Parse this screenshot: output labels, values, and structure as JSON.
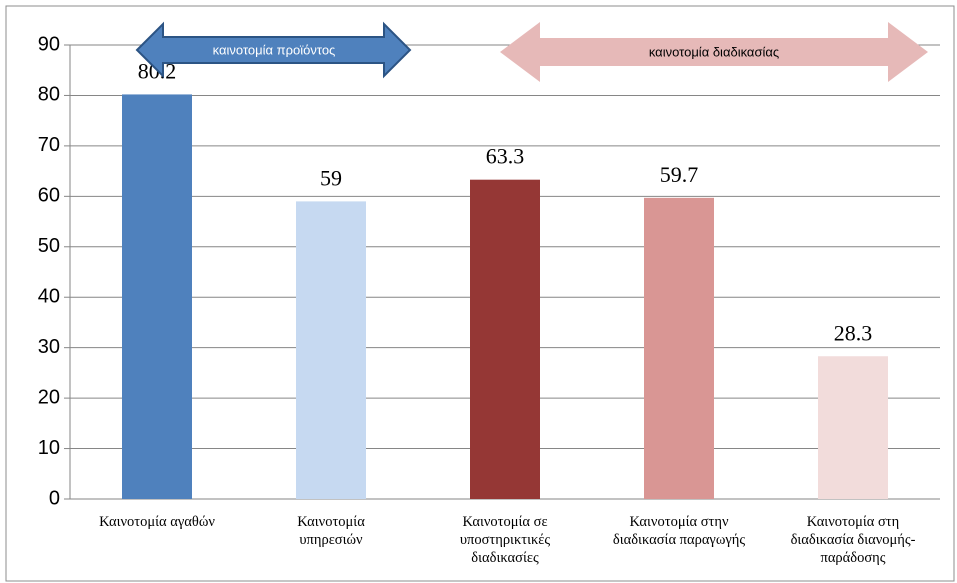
{
  "chart_data": {
    "type": "bar",
    "categories": [
      "Καινοτομία αγαθών",
      "Καινοτομία\nυπηρεσιών",
      "Καινοτομία σε\nυποστηρικτικές\nδιαδικασίες",
      "Καινοτομία στην\nδιαδικασία παραγωγής",
      "Καινοτομία στη\nδιαδικασία διανομής-\nπαράδοσης"
    ],
    "values": [
      80.2,
      59,
      63.3,
      59.7,
      28.3
    ],
    "colors": [
      "#4f81bd",
      "#c6d9f1",
      "#953735",
      "#d99694",
      "#f2dcdb"
    ],
    "ylim": [
      0,
      90
    ],
    "yticks": [
      0,
      10,
      20,
      30,
      40,
      50,
      60,
      70,
      80,
      90
    ],
    "grid": true,
    "annotations": [
      "καινοτομία προϊόντος",
      "καινοτομία διαδικασίας"
    ]
  }
}
